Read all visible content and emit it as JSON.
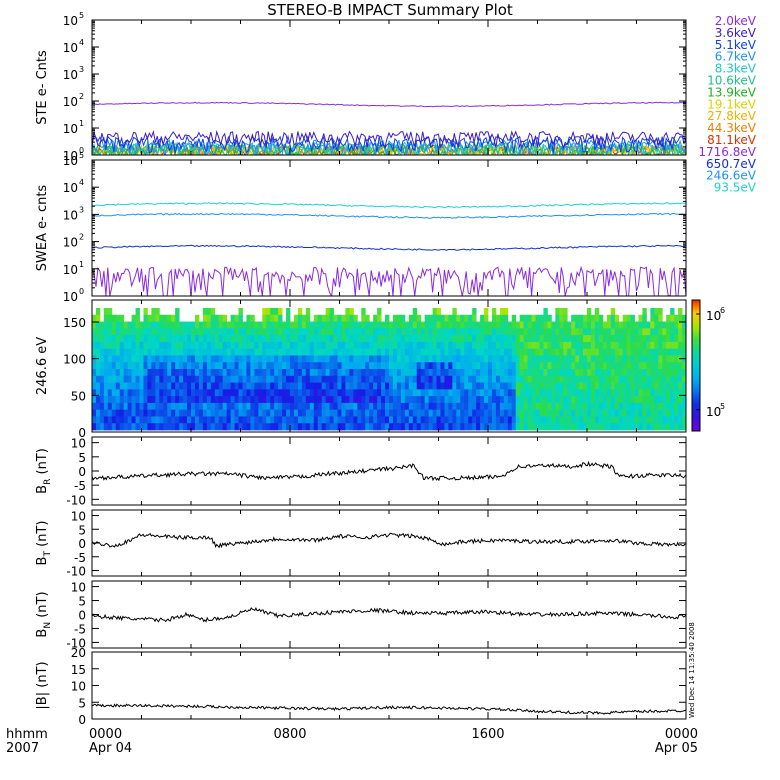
{
  "title": "STEREO-B IMPACT Summary Plot",
  "footer": {
    "time_label": "hhmm",
    "year": "2007",
    "x_ticks": [
      "0000",
      "0800",
      "1600",
      "0000"
    ],
    "date_labels": [
      "Apr 04",
      "Apr 05"
    ],
    "stamp": "Wed Dec 14 11:35:40 2008"
  },
  "chart_data": [
    {
      "type": "line",
      "ylabel": "STE e- Cnts",
      "yscale": "log",
      "ylim": [
        1,
        100000
      ],
      "y_ticks": [
        {
          "base": "10",
          "exp": "0"
        },
        {
          "base": "10",
          "exp": "1"
        },
        {
          "base": "10",
          "exp": "2"
        },
        {
          "base": "10",
          "exp": "3"
        },
        {
          "base": "10",
          "exp": "4"
        },
        {
          "base": "10",
          "exp": "5"
        }
      ],
      "x_range_hours": [
        0,
        24
      ],
      "series": [
        {
          "name": "2.0keV",
          "color": "#8a2be2",
          "level": 75
        },
        {
          "name": "3.6keV",
          "color": "#3a1ec8",
          "level": 3.5
        },
        {
          "name": "5.1keV",
          "color": "#1040e0",
          "level": 2.3
        },
        {
          "name": "6.7keV",
          "color": "#1e90ff",
          "level": 1.7
        },
        {
          "name": "8.3keV",
          "color": "#20c8c8",
          "level": 1.4
        },
        {
          "name": "10.6keV",
          "color": "#20c080",
          "level": 1.25
        },
        {
          "name": "13.9keV",
          "color": "#20b020",
          "level": 1.15
        },
        {
          "name": "19.1keV",
          "color": "#e0d000",
          "level": 1.1
        },
        {
          "name": "27.8keV",
          "color": "#f0b000",
          "level": 1.05
        },
        {
          "name": "44.3keV",
          "color": "#f08000",
          "level": 1.02
        },
        {
          "name": "81.1keV",
          "color": "#e03000",
          "level": 1.0
        }
      ]
    },
    {
      "type": "line",
      "ylabel": "SWEA e- cnts",
      "yscale": "log",
      "ylim": [
        1,
        100000
      ],
      "y_ticks": [
        {
          "base": "10",
          "exp": "0"
        },
        {
          "base": "10",
          "exp": "1"
        },
        {
          "base": "10",
          "exp": "2"
        },
        {
          "base": "10",
          "exp": "3"
        },
        {
          "base": "10",
          "exp": "4"
        },
        {
          "base": "10",
          "exp": "5"
        }
      ],
      "x_range_hours": [
        0,
        24
      ],
      "series": [
        {
          "name": "1716.8eV",
          "color": "#8a2be2",
          "level": 3
        },
        {
          "name": "650.7eV",
          "color": "#1030d0",
          "level": 60
        },
        {
          "name": "246.6eV",
          "color": "#1e90ff",
          "level": 900
        },
        {
          "name": "93.5eV",
          "color": "#20d0d0",
          "level": 2200
        }
      ]
    },
    {
      "type": "heatmap",
      "ylabel": "246.6 eV",
      "ylim": [
        0,
        180
      ],
      "y_ticks": [
        "0",
        "50",
        "100",
        "150"
      ],
      "x_range_hours": [
        0,
        24
      ],
      "colorbar": {
        "scale": "log",
        "range": [
          60000,
          1400000
        ],
        "ticks": [
          {
            "base": "10",
            "exp": "5"
          },
          {
            "base": "10",
            "exp": "6"
          }
        ]
      }
    },
    {
      "type": "line",
      "ylabel": "B",
      "ylabel_sub": "R",
      "ylabel_unit": "(nT)",
      "ylim": [
        -12,
        12
      ],
      "y_ticks": [
        "-10",
        "-5",
        "0",
        "5",
        "10"
      ],
      "x_range_hours": [
        0,
        24
      ],
      "points": [
        [
          0,
          -2.5
        ],
        [
          1.5,
          -2
        ],
        [
          2.5,
          -1.5
        ],
        [
          4,
          -1
        ],
        [
          5.5,
          -1
        ],
        [
          7,
          -2.5
        ],
        [
          8.5,
          -2
        ],
        [
          9.5,
          -1
        ],
        [
          10.5,
          -0.5
        ],
        [
          11.5,
          0.5
        ],
        [
          12.3,
          1
        ],
        [
          13,
          2
        ],
        [
          13.4,
          -2.5
        ],
        [
          15,
          -2.5
        ],
        [
          16.5,
          -2
        ],
        [
          17.2,
          1.5
        ],
        [
          18.5,
          2
        ],
        [
          19.3,
          1.5
        ],
        [
          20,
          2.5
        ],
        [
          21,
          1.5
        ],
        [
          21.3,
          -2
        ],
        [
          22.5,
          -1.5
        ],
        [
          23.5,
          -1.5
        ],
        [
          24,
          -1.8
        ]
      ]
    },
    {
      "type": "line",
      "ylabel": "B",
      "ylabel_sub": "T",
      "ylabel_unit": "(nT)",
      "ylim": [
        -12,
        12
      ],
      "y_ticks": [
        "-10",
        "-5",
        "0",
        "5",
        "10"
      ],
      "x_range_hours": [
        0,
        24
      ],
      "points": [
        [
          0,
          0
        ],
        [
          1,
          -1
        ],
        [
          2,
          3
        ],
        [
          3.5,
          2
        ],
        [
          4.8,
          2
        ],
        [
          5,
          -1
        ],
        [
          6,
          0
        ],
        [
          7.5,
          1.5
        ],
        [
          9,
          1
        ],
        [
          10,
          2.5
        ],
        [
          11,
          2
        ],
        [
          12,
          3
        ],
        [
          13,
          2.5
        ],
        [
          13.8,
          1
        ],
        [
          14.2,
          -0.5
        ],
        [
          15,
          0.5
        ],
        [
          16.5,
          1
        ],
        [
          18,
          0.5
        ],
        [
          19.5,
          0.5
        ],
        [
          21,
          1
        ],
        [
          22,
          0
        ],
        [
          23,
          -0.5
        ],
        [
          24,
          -0.5
        ]
      ]
    },
    {
      "type": "line",
      "ylabel": "B",
      "ylabel_sub": "N",
      "ylabel_unit": "(nT)",
      "ylim": [
        -12,
        12
      ],
      "y_ticks": [
        "-10",
        "-5",
        "0",
        "5",
        "10"
      ],
      "x_range_hours": [
        0,
        24
      ],
      "points": [
        [
          0,
          -0.5
        ],
        [
          1.5,
          -1.5
        ],
        [
          3,
          -2
        ],
        [
          3.8,
          0
        ],
        [
          4.5,
          -2
        ],
        [
          5.5,
          -1
        ],
        [
          6.5,
          2
        ],
        [
          7.5,
          -0.5
        ],
        [
          8.5,
          0
        ],
        [
          10,
          1
        ],
        [
          11.5,
          1.5
        ],
        [
          13,
          0.5
        ],
        [
          14.5,
          0.5
        ],
        [
          16,
          1
        ],
        [
          17.5,
          0
        ],
        [
          19,
          0
        ],
        [
          20.5,
          0.5
        ],
        [
          22,
          0
        ],
        [
          23.5,
          -1
        ],
        [
          24,
          -0.5
        ]
      ]
    },
    {
      "type": "line",
      "ylabel": "|B|",
      "ylabel_unit": "(nT)",
      "ylim": [
        0,
        20
      ],
      "y_ticks": [
        "0",
        "5",
        "10",
        "15",
        "20"
      ],
      "x_range_hours": [
        0,
        24
      ],
      "points": [
        [
          0,
          4
        ],
        [
          2,
          4
        ],
        [
          4,
          3.8
        ],
        [
          6,
          3.5
        ],
        [
          8,
          3.2
        ],
        [
          10,
          3
        ],
        [
          12,
          3.5
        ],
        [
          14,
          3.3
        ],
        [
          16,
          3
        ],
        [
          17.5,
          2.5
        ],
        [
          19,
          2
        ],
        [
          20.5,
          1.8
        ],
        [
          22,
          2.2
        ],
        [
          24,
          2.5
        ]
      ]
    }
  ]
}
